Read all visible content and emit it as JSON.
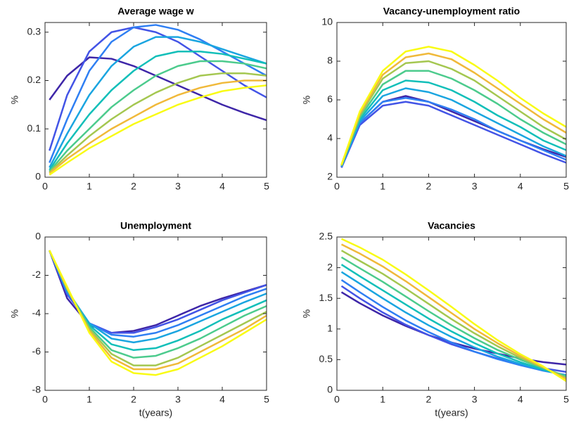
{
  "chart_data": [
    {
      "type": "line",
      "title": "Average wage w",
      "ylabel": "%",
      "x": [
        0.1,
        0.5,
        1,
        1.5,
        2,
        2.5,
        3,
        3.5,
        4,
        4.5,
        5
      ],
      "xlim": [
        0,
        5
      ],
      "xticks": [
        0,
        1,
        2,
        3,
        4,
        5
      ],
      "ylim": [
        0,
        0.32
      ],
      "yticks": [
        0,
        0.1,
        0.2,
        0.3
      ],
      "series": [
        {
          "color": "#3e26a8",
          "values": [
            0.16,
            0.21,
            0.248,
            0.245,
            0.23,
            0.21,
            0.19,
            0.17,
            0.15,
            0.133,
            0.118
          ]
        },
        {
          "color": "#4354e6",
          "values": [
            0.055,
            0.17,
            0.26,
            0.3,
            0.31,
            0.3,
            0.28,
            0.25,
            0.22,
            0.19,
            0.165
          ]
        },
        {
          "color": "#2f7ff3",
          "values": [
            0.03,
            0.12,
            0.22,
            0.28,
            0.31,
            0.315,
            0.305,
            0.285,
            0.26,
            0.235,
            0.21
          ]
        },
        {
          "color": "#1aa5e0",
          "values": [
            0.02,
            0.09,
            0.17,
            0.23,
            0.27,
            0.29,
            0.29,
            0.28,
            0.265,
            0.25,
            0.235
          ]
        },
        {
          "color": "#12bfb9",
          "values": [
            0.015,
            0.07,
            0.13,
            0.18,
            0.22,
            0.25,
            0.26,
            0.26,
            0.255,
            0.245,
            0.235
          ]
        },
        {
          "color": "#4ccb8d",
          "values": [
            0.012,
            0.055,
            0.1,
            0.145,
            0.18,
            0.21,
            0.23,
            0.24,
            0.24,
            0.235,
            0.225
          ]
        },
        {
          "color": "#a4c750",
          "values": [
            0.01,
            0.045,
            0.085,
            0.12,
            0.15,
            0.175,
            0.195,
            0.21,
            0.215,
            0.215,
            0.21
          ]
        },
        {
          "color": "#f0b93a",
          "values": [
            0.008,
            0.038,
            0.07,
            0.1,
            0.125,
            0.15,
            0.17,
            0.185,
            0.195,
            0.2,
            0.2
          ]
        },
        {
          "color": "#f9fb15",
          "values": [
            0.005,
            0.03,
            0.06,
            0.085,
            0.11,
            0.13,
            0.15,
            0.165,
            0.178,
            0.185,
            0.19
          ]
        }
      ]
    },
    {
      "type": "line",
      "title": "Vacancy-unemployment ratio",
      "ylabel": "%",
      "x": [
        0.1,
        0.5,
        1,
        1.5,
        2,
        2.5,
        3,
        3.5,
        4,
        4.5,
        5
      ],
      "xlim": [
        0,
        5
      ],
      "xticks": [
        0,
        1,
        2,
        3,
        4,
        5
      ],
      "ylim": [
        2,
        10
      ],
      "yticks": [
        2,
        4,
        6,
        8,
        10
      ],
      "series": [
        {
          "color": "#3e26a8",
          "values": [
            2.5,
            4.8,
            5.9,
            6.2,
            5.9,
            5.4,
            4.9,
            4.4,
            3.9,
            3.45,
            3.05
          ]
        },
        {
          "color": "#4354e6",
          "values": [
            2.5,
            4.7,
            5.7,
            5.9,
            5.7,
            5.2,
            4.7,
            4.2,
            3.7,
            3.2,
            2.75
          ]
        },
        {
          "color": "#2f7ff3",
          "values": [
            2.55,
            4.8,
            5.9,
            6.1,
            5.9,
            5.5,
            5.0,
            4.4,
            3.9,
            3.4,
            2.9
          ]
        },
        {
          "color": "#1aa5e0",
          "values": [
            2.55,
            4.9,
            6.2,
            6.6,
            6.4,
            6.0,
            5.4,
            4.8,
            4.2,
            3.6,
            3.1
          ]
        },
        {
          "color": "#12bfb9",
          "values": [
            2.6,
            5.0,
            6.5,
            7.0,
            6.9,
            6.5,
            5.9,
            5.2,
            4.6,
            3.9,
            3.4
          ]
        },
        {
          "color": "#4ccb8d",
          "values": [
            2.6,
            5.1,
            6.8,
            7.5,
            7.5,
            7.1,
            6.5,
            5.8,
            5.0,
            4.3,
            3.7
          ]
        },
        {
          "color": "#a4c750",
          "values": [
            2.6,
            5.2,
            7.1,
            7.9,
            8.0,
            7.6,
            7.0,
            6.2,
            5.4,
            4.6,
            3.95
          ]
        },
        {
          "color": "#f0b93a",
          "values": [
            2.65,
            5.3,
            7.3,
            8.2,
            8.4,
            8.1,
            7.4,
            6.6,
            5.8,
            5.0,
            4.3
          ]
        },
        {
          "color": "#f9fb15",
          "values": [
            2.65,
            5.4,
            7.5,
            8.5,
            8.75,
            8.5,
            7.8,
            7.0,
            6.1,
            5.3,
            4.6
          ]
        }
      ]
    },
    {
      "type": "line",
      "title": "Unemployment",
      "ylabel": "%",
      "xlabel": "t(years)",
      "x": [
        0.1,
        0.5,
        1,
        1.5,
        2,
        2.5,
        3,
        3.5,
        4,
        4.5,
        5
      ],
      "xlim": [
        0,
        5
      ],
      "xticks": [
        0,
        1,
        2,
        3,
        4,
        5
      ],
      "ylim": [
        -8,
        0
      ],
      "yticks": [
        -8,
        -6,
        -4,
        -2,
        0
      ],
      "series": [
        {
          "color": "#3e26a8",
          "values": [
            -0.7,
            -3.2,
            -4.6,
            -5.0,
            -4.9,
            -4.6,
            -4.1,
            -3.6,
            -3.2,
            -2.85,
            -2.5
          ]
        },
        {
          "color": "#4354e6",
          "values": [
            -0.7,
            -3.0,
            -4.5,
            -5.0,
            -5.0,
            -4.7,
            -4.3,
            -3.8,
            -3.3,
            -2.9,
            -2.5
          ]
        },
        {
          "color": "#2f7ff3",
          "values": [
            -0.7,
            -2.9,
            -4.5,
            -5.1,
            -5.2,
            -5.0,
            -4.6,
            -4.1,
            -3.6,
            -3.1,
            -2.7
          ]
        },
        {
          "color": "#1aa5e0",
          "values": [
            -0.7,
            -2.8,
            -4.5,
            -5.3,
            -5.5,
            -5.3,
            -4.9,
            -4.4,
            -3.9,
            -3.4,
            -2.95
          ]
        },
        {
          "color": "#12bfb9",
          "values": [
            -0.7,
            -2.8,
            -4.6,
            -5.6,
            -5.9,
            -5.8,
            -5.4,
            -4.9,
            -4.3,
            -3.8,
            -3.3
          ]
        },
        {
          "color": "#4ccb8d",
          "values": [
            -0.7,
            -2.7,
            -4.7,
            -5.9,
            -6.3,
            -6.2,
            -5.8,
            -5.3,
            -4.7,
            -4.1,
            -3.6
          ]
        },
        {
          "color": "#a4c750",
          "values": [
            -0.7,
            -2.7,
            -4.8,
            -6.1,
            -6.7,
            -6.7,
            -6.3,
            -5.7,
            -5.1,
            -4.5,
            -3.9
          ]
        },
        {
          "color": "#f0b93a",
          "values": [
            -0.7,
            -2.7,
            -4.9,
            -6.3,
            -6.9,
            -6.9,
            -6.6,
            -6.0,
            -5.4,
            -4.8,
            -4.1
          ]
        },
        {
          "color": "#f9fb15",
          "values": [
            -0.7,
            -2.6,
            -5.0,
            -6.5,
            -7.1,
            -7.2,
            -6.9,
            -6.3,
            -5.7,
            -5.0,
            -4.3
          ]
        }
      ]
    },
    {
      "type": "line",
      "title": "Vacancies",
      "ylabel": "%",
      "xlabel": "t(years)",
      "x": [
        0.1,
        0.5,
        1,
        1.5,
        2,
        2.5,
        3,
        3.5,
        4,
        4.5,
        5
      ],
      "xlim": [
        0,
        5
      ],
      "xticks": [
        0,
        1,
        2,
        3,
        4,
        5
      ],
      "ylim": [
        0,
        2.5
      ],
      "yticks": [
        0,
        0.5,
        1,
        1.5,
        2,
        2.5
      ],
      "series": [
        {
          "color": "#3e26a8",
          "values": [
            1.6,
            1.42,
            1.22,
            1.05,
            0.9,
            0.78,
            0.68,
            0.6,
            0.52,
            0.46,
            0.42
          ]
        },
        {
          "color": "#4354e6",
          "values": [
            1.7,
            1.5,
            1.27,
            1.07,
            0.9,
            0.75,
            0.63,
            0.52,
            0.43,
            0.36,
            0.3
          ]
        },
        {
          "color": "#2f7ff3",
          "values": [
            1.8,
            1.6,
            1.36,
            1.14,
            0.95,
            0.78,
            0.63,
            0.51,
            0.41,
            0.32,
            0.25
          ]
        },
        {
          "color": "#1aa5e0",
          "values": [
            1.93,
            1.74,
            1.5,
            1.27,
            1.06,
            0.87,
            0.7,
            0.55,
            0.43,
            0.33,
            0.24
          ]
        },
        {
          "color": "#12bfb9",
          "values": [
            2.05,
            1.86,
            1.63,
            1.4,
            1.17,
            0.96,
            0.77,
            0.6,
            0.46,
            0.34,
            0.23
          ]
        },
        {
          "color": "#4ccb8d",
          "values": [
            2.17,
            1.99,
            1.77,
            1.53,
            1.29,
            1.06,
            0.85,
            0.66,
            0.5,
            0.36,
            0.23
          ]
        },
        {
          "color": "#a4c750",
          "values": [
            2.28,
            2.11,
            1.9,
            1.66,
            1.41,
            1.16,
            0.93,
            0.72,
            0.53,
            0.37,
            0.2
          ]
        },
        {
          "color": "#f0b93a",
          "values": [
            2.38,
            2.23,
            2.02,
            1.78,
            1.52,
            1.26,
            1.0,
            0.77,
            0.56,
            0.38,
            0.18
          ]
        },
        {
          "color": "#f9fb15",
          "values": [
            2.47,
            2.33,
            2.13,
            1.89,
            1.63,
            1.36,
            1.08,
            0.82,
            0.59,
            0.39,
            0.15
          ]
        }
      ]
    }
  ]
}
